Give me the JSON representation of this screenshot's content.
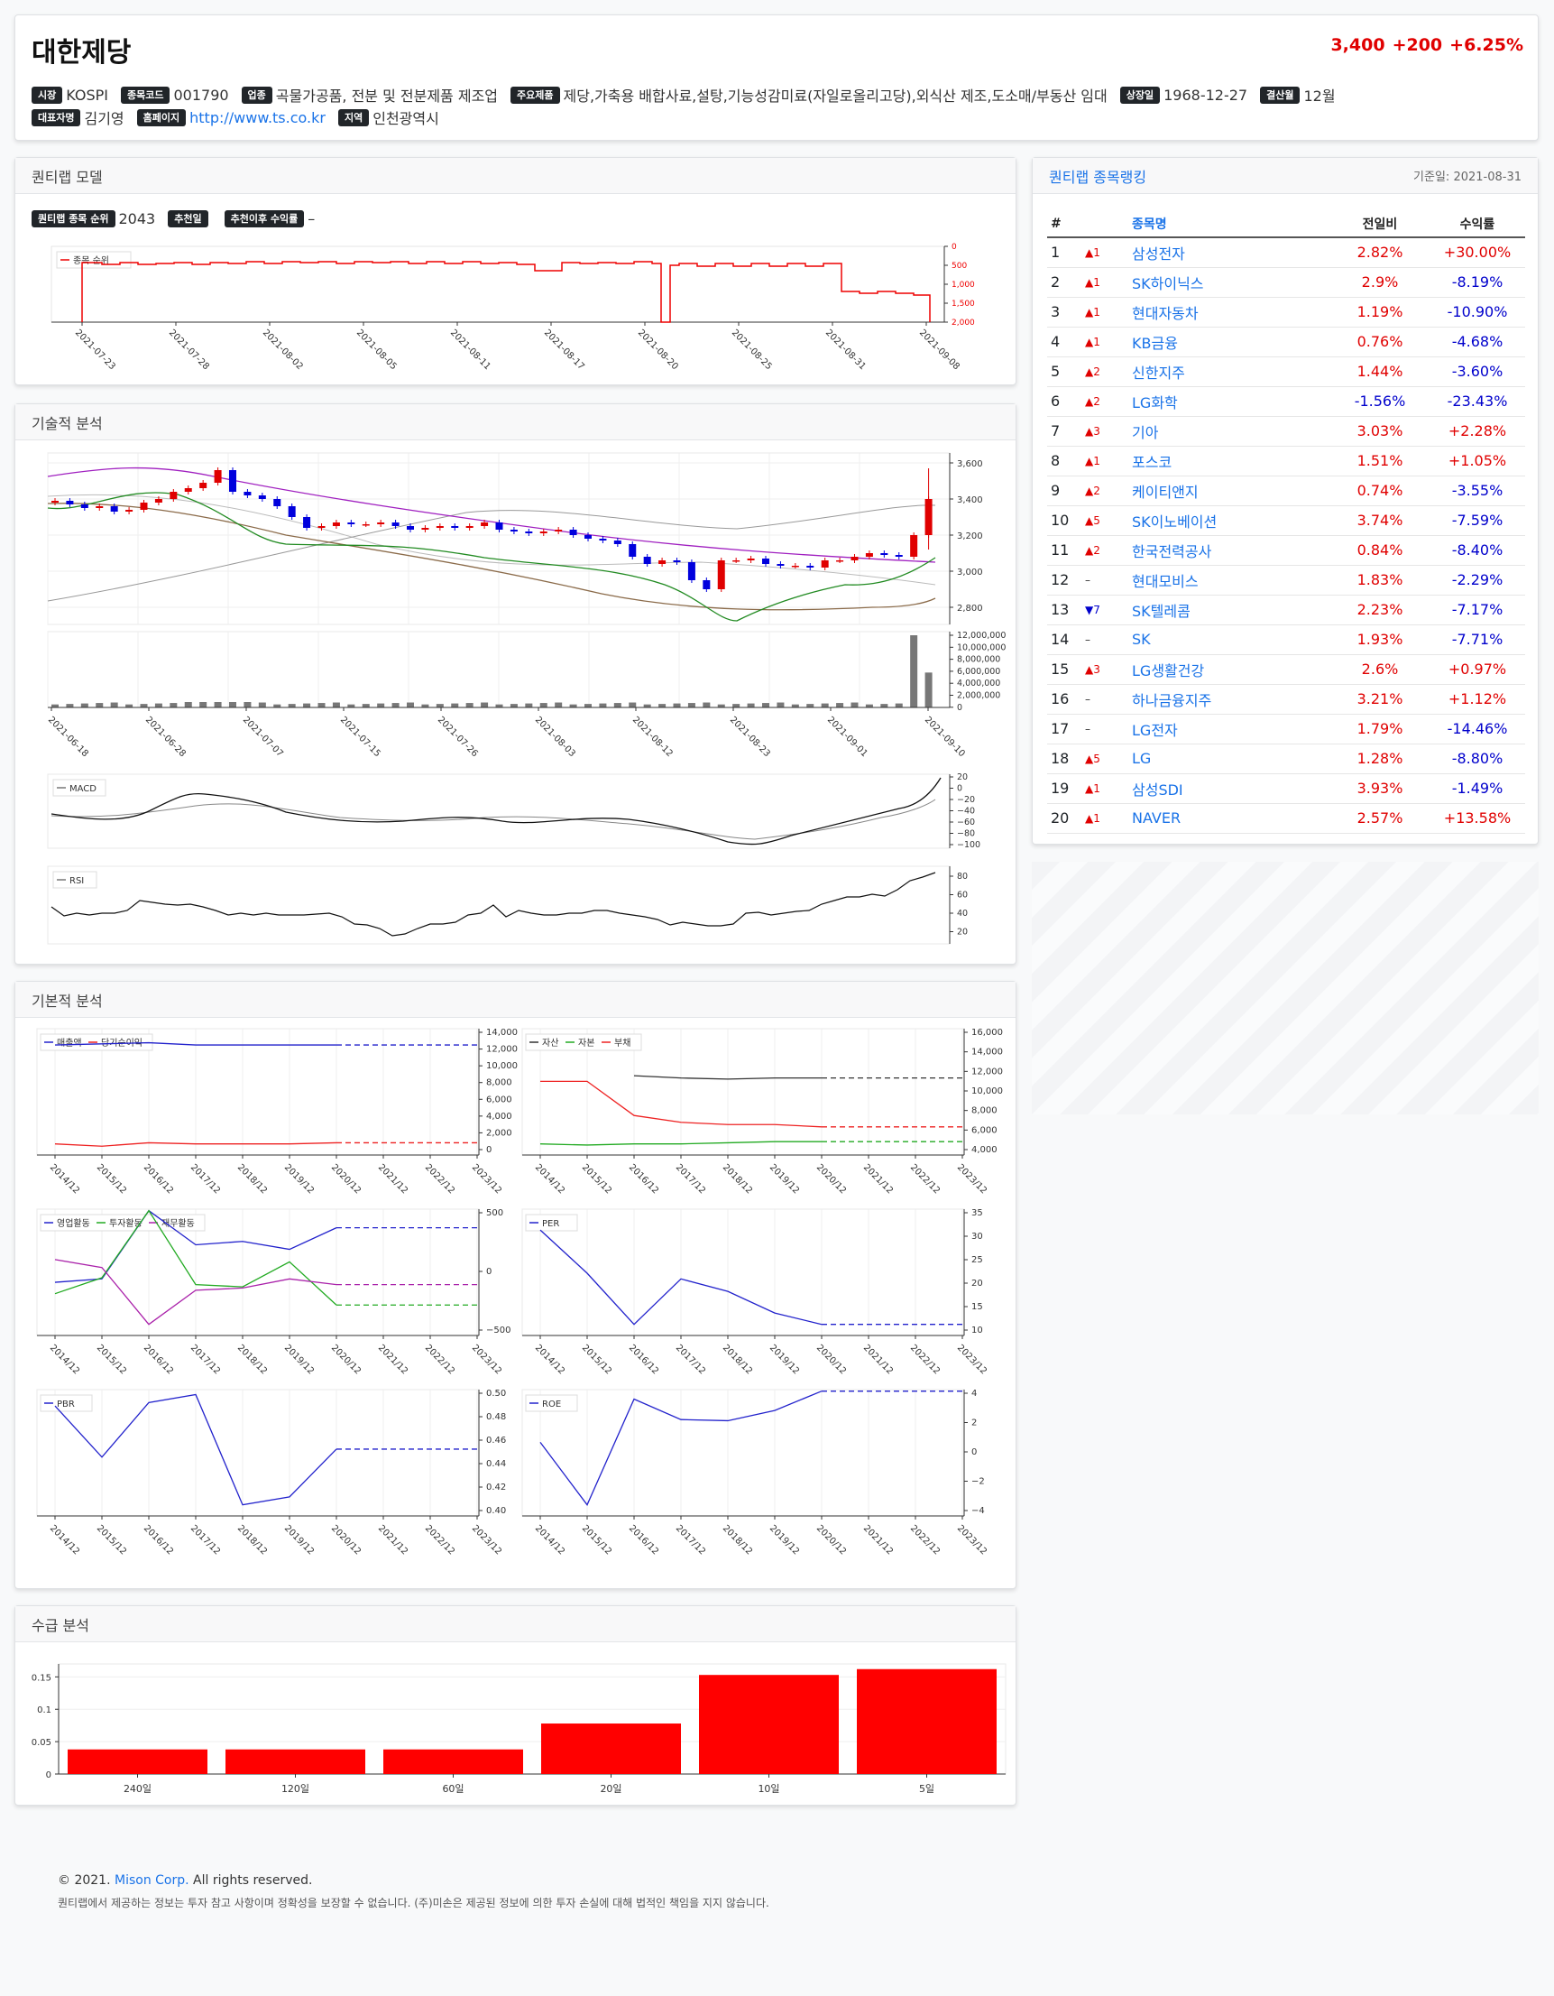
{
  "company": {
    "name": "대한제당",
    "price": "3,400",
    "change": "+200",
    "change_pct": "+6.25%",
    "info": [
      {
        "label": "시장",
        "value": "KOSPI"
      },
      {
        "label": "종목코드",
        "value": "001790"
      },
      {
        "label": "업종",
        "value": "곡물가공품, 전분 및 전분제품 제조업"
      },
      {
        "label": "주요제품",
        "value": "제당,가축용 배합사료,설탕,기능성감미료(자일로올리고당),외식산 제조,도소매/부동산 임대"
      },
      {
        "label": "상장일",
        "value": "1968-12-27"
      },
      {
        "label": "결산월",
        "value": "12월"
      }
    ],
    "info2": [
      {
        "label": "대표자명",
        "value": "김기영"
      },
      {
        "label": "홈페이지",
        "value": "http://www.ts.co.kr"
      },
      {
        "label": "지역",
        "value": "인천광역시"
      }
    ]
  },
  "model": {
    "header": "퀀티랩 모델",
    "rank_label": "퀀티랩 종목 순위",
    "rank_value": "2043",
    "rec_date_label": "추천일",
    "rec_date_value": "",
    "rec_return_label": "추천이후 수익률",
    "rec_return_value": "–",
    "legend": "종목 순위",
    "x_ticks": [
      "2021-07-23",
      "2021-07-28",
      "2021-08-02",
      "2021-08-05",
      "2021-08-11",
      "2021-08-17",
      "2021-08-20",
      "2021-08-25",
      "2021-08-31",
      "2021-09-08"
    ],
    "y_ticks": [
      "0",
      "500",
      "1,000",
      "1,500",
      "2,000"
    ]
  },
  "technical": {
    "header": "기술적 분석",
    "price_ticks": [
      "3,600",
      "3,400",
      "3,200",
      "3,000",
      "2,800"
    ],
    "volume_ticks": [
      "12,000,000",
      "10,000,000",
      "8,000,000",
      "6,000,000",
      "4,000,000",
      "2,000,000",
      "0"
    ],
    "x_ticks": [
      "2021-06-18",
      "2021-06-28",
      "2021-07-07",
      "2021-07-15",
      "2021-07-26",
      "2021-08-03",
      "2021-08-12",
      "2021-08-23",
      "2021-09-01",
      "2021-09-10"
    ],
    "macd_legend": "MACD",
    "macd_ticks": [
      "20",
      "0",
      "−20",
      "−40",
      "−60",
      "−80",
      "−100"
    ],
    "rsi_legend": "RSI",
    "rsi_ticks": [
      "80",
      "60",
      "40",
      "20"
    ]
  },
  "fundamental": {
    "header": "기본적 분석",
    "x_ticks": [
      "2014/12",
      "2015/12",
      "2016/12",
      "2017/12",
      "2018/12",
      "2019/12",
      "2020/12",
      "2021/12",
      "2022/12",
      "2023/12"
    ],
    "charts": [
      {
        "legend": [
          "매출액",
          "당기순이익"
        ],
        "ticks": [
          "14,000",
          "12,000",
          "10,000",
          "8,000",
          "6,000",
          "4,000",
          "2,000",
          "0"
        ]
      },
      {
        "legend": [
          "자산",
          "자본",
          "부채"
        ],
        "ticks": [
          "16,000",
          "14,000",
          "12,000",
          "10,000",
          "8,000",
          "6,000",
          "4,000"
        ]
      },
      {
        "legend": [
          "영업활동",
          "투자활동",
          "재무활동"
        ],
        "ticks": [
          "500",
          "0",
          "−500"
        ]
      },
      {
        "legend": [
          "PER"
        ],
        "ticks": [
          "35",
          "30",
          "25",
          "20",
          "15",
          "10"
        ]
      },
      {
        "legend": [
          "PBR"
        ],
        "ticks": [
          "0.50",
          "0.48",
          "0.46",
          "0.44",
          "0.42",
          "0.40"
        ]
      },
      {
        "legend": [
          "ROE"
        ],
        "ticks": [
          "4",
          "2",
          "0",
          "−2",
          "−4"
        ]
      }
    ]
  },
  "supply": {
    "header": "수급 분석",
    "chart_data": {
      "type": "bar",
      "categories": [
        "240일",
        "120일",
        "60일",
        "20일",
        "10일",
        "5일"
      ],
      "values": [
        0.038,
        0.038,
        0.038,
        0.078,
        0.153,
        0.162
      ],
      "ylim": [
        0,
        0.17
      ],
      "y_ticks": [
        "0.15",
        "0.1",
        "0.05",
        "0"
      ],
      "color": "#ff0000"
    }
  },
  "ranking": {
    "header": "퀀티랩 종목랭킹",
    "base_date": "기준일: 2021-08-31",
    "columns": [
      "#",
      "종목명",
      "전일비",
      "수익률"
    ],
    "rows": [
      {
        "n": "1",
        "chg": "▲1",
        "dir": "up",
        "name": "삼성전자",
        "pct": "2.82%",
        "ret": "+30.00%"
      },
      {
        "n": "2",
        "chg": "▲1",
        "dir": "up",
        "name": "SK하이닉스",
        "pct": "2.9%",
        "ret": "-8.19%"
      },
      {
        "n": "3",
        "chg": "▲1",
        "dir": "up",
        "name": "현대자동차",
        "pct": "1.19%",
        "ret": "-10.90%"
      },
      {
        "n": "4",
        "chg": "▲1",
        "dir": "up",
        "name": "KB금융",
        "pct": "0.76%",
        "ret": "-4.68%"
      },
      {
        "n": "5",
        "chg": "▲2",
        "dir": "up",
        "name": "신한지주",
        "pct": "1.44%",
        "ret": "-3.60%"
      },
      {
        "n": "6",
        "chg": "▲2",
        "dir": "up",
        "name": "LG화학",
        "pct": "-1.56%",
        "ret": "-23.43%"
      },
      {
        "n": "7",
        "chg": "▲3",
        "dir": "up",
        "name": "기아",
        "pct": "3.03%",
        "ret": "+2.28%"
      },
      {
        "n": "8",
        "chg": "▲1",
        "dir": "up",
        "name": "포스코",
        "pct": "1.51%",
        "ret": "+1.05%"
      },
      {
        "n": "9",
        "chg": "▲2",
        "dir": "up",
        "name": "케이티앤지",
        "pct": "0.74%",
        "ret": "-3.55%"
      },
      {
        "n": "10",
        "chg": "▲5",
        "dir": "up",
        "name": "SK이노베이션",
        "pct": "3.74%",
        "ret": "-7.59%"
      },
      {
        "n": "11",
        "chg": "▲2",
        "dir": "up",
        "name": "한국전력공사",
        "pct": "0.84%",
        "ret": "-8.40%"
      },
      {
        "n": "12",
        "chg": "–",
        "dir": "flat",
        "name": "현대모비스",
        "pct": "1.83%",
        "ret": "-2.29%"
      },
      {
        "n": "13",
        "chg": "▼7",
        "dir": "down",
        "name": "SK텔레콤",
        "pct": "2.23%",
        "ret": "-7.17%"
      },
      {
        "n": "14",
        "chg": "–",
        "dir": "flat",
        "name": "SK",
        "pct": "1.93%",
        "ret": "-7.71%"
      },
      {
        "n": "15",
        "chg": "▲3",
        "dir": "up",
        "name": "LG생활건강",
        "pct": "2.6%",
        "ret": "+0.97%"
      },
      {
        "n": "16",
        "chg": "–",
        "dir": "flat",
        "name": "하나금융지주",
        "pct": "3.21%",
        "ret": "+1.12%"
      },
      {
        "n": "17",
        "chg": "–",
        "dir": "flat",
        "name": "LG전자",
        "pct": "1.79%",
        "ret": "-14.46%"
      },
      {
        "n": "18",
        "chg": "▲5",
        "dir": "up",
        "name": "LG",
        "pct": "1.28%",
        "ret": "-8.80%"
      },
      {
        "n": "19",
        "chg": "▲1",
        "dir": "up",
        "name": "삼성SDI",
        "pct": "3.93%",
        "ret": "-1.49%"
      },
      {
        "n": "20",
        "chg": "▲1",
        "dir": "up",
        "name": "NAVER",
        "pct": "2.57%",
        "ret": "+13.58%"
      }
    ]
  },
  "footer": {
    "copy_prefix": "© 2021.",
    "company_link": "Mison Corp.",
    "copy_suffix": "All rights reserved.",
    "disclaimer": "퀀티랩에서 제공하는 정보는 투자 참고 사항이며 정확성을 보장할 수 없습니다. (주)미손은 제공된 정보에 의한 투자 손실에 대해 법적인 책임을 지지 않습니다."
  }
}
